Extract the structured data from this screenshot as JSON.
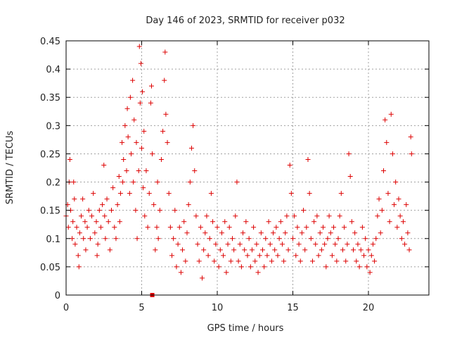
{
  "chart_data": {
    "type": "scatter",
    "title": "Day 146 of 2023, SRMTID for receiver p032",
    "xlabel": "GPS time / hours",
    "ylabel": "SRMTID / TECUs",
    "xlim": [
      0,
      24
    ],
    "ylim": [
      0,
      0.45
    ],
    "xticks": [
      0,
      5,
      10,
      15,
      20
    ],
    "yticks": [
      0,
      0.05,
      0.1,
      0.15,
      0.2,
      0.25,
      0.3,
      0.35,
      0.4,
      0.45
    ],
    "xtick_labels": [
      "0",
      "5",
      "10",
      "15",
      "20"
    ],
    "ytick_labels": [
      "0",
      "0.05",
      "0.1",
      "0.15",
      "0.2",
      "0.25",
      "0.3",
      "0.35",
      "0.4",
      "0.45"
    ],
    "grid": true,
    "marker": "plus",
    "series": [
      {
        "name": "SRMTID",
        "color": "#dd0000",
        "points": [
          [
            0.0,
            0.14
          ],
          [
            0.1,
            0.16
          ],
          [
            0.15,
            0.12
          ],
          [
            0.2,
            0.2
          ],
          [
            0.25,
            0.24
          ],
          [
            0.3,
            0.15
          ],
          [
            0.4,
            0.1
          ],
          [
            0.45,
            0.13
          ],
          [
            0.5,
            0.2
          ],
          [
            0.55,
            0.17
          ],
          [
            0.6,
            0.09
          ],
          [
            0.7,
            0.12
          ],
          [
            0.8,
            0.07
          ],
          [
            0.85,
            0.05
          ],
          [
            0.9,
            0.11
          ],
          [
            1.0,
            0.14
          ],
          [
            1.1,
            0.17
          ],
          [
            1.15,
            0.1
          ],
          [
            1.25,
            0.13
          ],
          [
            1.3,
            0.08
          ],
          [
            1.4,
            0.12
          ],
          [
            1.5,
            0.15
          ],
          [
            1.6,
            0.1
          ],
          [
            1.7,
            0.14
          ],
          [
            1.8,
            0.18
          ],
          [
            1.9,
            0.11
          ],
          [
            2.0,
            0.13
          ],
          [
            2.05,
            0.07
          ],
          [
            2.1,
            0.09
          ],
          [
            2.2,
            0.15
          ],
          [
            2.3,
            0.12
          ],
          [
            2.4,
            0.16
          ],
          [
            2.5,
            0.23
          ],
          [
            2.55,
            0.14
          ],
          [
            2.6,
            0.1
          ],
          [
            2.7,
            0.17
          ],
          [
            2.8,
            0.13
          ],
          [
            2.9,
            0.08
          ],
          [
            3.0,
            0.15
          ],
          [
            3.1,
            0.19
          ],
          [
            3.2,
            0.12
          ],
          [
            3.3,
            0.1
          ],
          [
            3.4,
            0.16
          ],
          [
            3.5,
            0.21
          ],
          [
            3.55,
            0.13
          ],
          [
            3.6,
            0.18
          ],
          [
            3.7,
            0.27
          ],
          [
            3.75,
            0.2
          ],
          [
            3.8,
            0.24
          ],
          [
            3.9,
            0.3
          ],
          [
            4.0,
            0.22
          ],
          [
            4.05,
            0.33
          ],
          [
            4.1,
            0.28
          ],
          [
            4.2,
            0.18
          ],
          [
            4.25,
            0.35
          ],
          [
            4.3,
            0.25
          ],
          [
            4.4,
            0.38
          ],
          [
            4.45,
            0.2
          ],
          [
            4.5,
            0.31
          ],
          [
            4.6,
            0.15
          ],
          [
            4.65,
            0.27
          ],
          [
            4.7,
            0.1
          ],
          [
            4.8,
            0.22
          ],
          [
            4.85,
            0.44
          ],
          [
            4.9,
            0.34
          ],
          [
            4.95,
            0.41
          ],
          [
            5.0,
            0.26
          ],
          [
            5.05,
            0.36
          ],
          [
            5.1,
            0.19
          ],
          [
            5.15,
            0.29
          ],
          [
            5.2,
            0.14
          ],
          [
            5.3,
            0.22
          ],
          [
            5.4,
            0.12
          ],
          [
            5.5,
            0.18
          ],
          [
            5.6,
            0.34
          ],
          [
            5.65,
            0.37
          ],
          [
            5.7,
            0.25
          ],
          [
            5.8,
            0.16
          ],
          [
            5.9,
            0.08
          ],
          [
            6.0,
            0.12
          ],
          [
            6.05,
            0.2
          ],
          [
            6.1,
            0.1
          ],
          [
            6.2,
            0.15
          ],
          [
            6.3,
            0.24
          ],
          [
            6.4,
            0.29
          ],
          [
            6.5,
            0.38
          ],
          [
            6.55,
            0.43
          ],
          [
            6.6,
            0.32
          ],
          [
            6.7,
            0.27
          ],
          [
            6.8,
            0.18
          ],
          [
            6.9,
            0.12
          ],
          [
            7.0,
            0.07
          ],
          [
            7.1,
            0.1
          ],
          [
            7.2,
            0.15
          ],
          [
            7.3,
            0.05
          ],
          [
            7.4,
            0.09
          ],
          [
            7.5,
            0.12
          ],
          [
            7.6,
            0.04
          ],
          [
            7.7,
            0.08
          ],
          [
            7.8,
            0.13
          ],
          [
            7.9,
            0.06
          ],
          [
            8.0,
            0.11
          ],
          [
            8.1,
            0.16
          ],
          [
            8.2,
            0.2
          ],
          [
            8.3,
            0.26
          ],
          [
            8.4,
            0.3
          ],
          [
            8.5,
            0.22
          ],
          [
            8.6,
            0.14
          ],
          [
            8.7,
            0.09
          ],
          [
            8.8,
            0.06
          ],
          [
            8.9,
            0.12
          ],
          [
            9.0,
            0.03
          ],
          [
            9.1,
            0.08
          ],
          [
            9.2,
            0.11
          ],
          [
            9.3,
            0.14
          ],
          [
            9.4,
            0.07
          ],
          [
            9.5,
            0.1
          ],
          [
            9.6,
            0.18
          ],
          [
            9.7,
            0.13
          ],
          [
            9.8,
            0.06
          ],
          [
            9.9,
            0.09
          ],
          [
            10.0,
            0.12
          ],
          [
            10.1,
            0.05
          ],
          [
            10.2,
            0.08
          ],
          [
            10.3,
            0.11
          ],
          [
            10.4,
            0.07
          ],
          [
            10.5,
            0.13
          ],
          [
            10.6,
            0.04
          ],
          [
            10.7,
            0.09
          ],
          [
            10.8,
            0.12
          ],
          [
            10.9,
            0.06
          ],
          [
            11.0,
            0.1
          ],
          [
            11.1,
            0.08
          ],
          [
            11.2,
            0.14
          ],
          [
            11.3,
            0.2
          ],
          [
            11.4,
            0.06
          ],
          [
            11.5,
            0.09
          ],
          [
            11.6,
            0.05
          ],
          [
            11.7,
            0.11
          ],
          [
            11.8,
            0.08
          ],
          [
            11.9,
            0.13
          ],
          [
            12.0,
            0.07
          ],
          [
            12.1,
            0.1
          ],
          [
            12.2,
            0.05
          ],
          [
            12.3,
            0.08
          ],
          [
            12.4,
            0.12
          ],
          [
            12.5,
            0.06
          ],
          [
            12.6,
            0.09
          ],
          [
            12.7,
            0.04
          ],
          [
            12.8,
            0.07
          ],
          [
            12.9,
            0.11
          ],
          [
            13.0,
            0.08
          ],
          [
            13.1,
            0.05
          ],
          [
            13.2,
            0.1
          ],
          [
            13.3,
            0.07
          ],
          [
            13.4,
            0.13
          ],
          [
            13.5,
            0.09
          ],
          [
            13.6,
            0.06
          ],
          [
            13.7,
            0.11
          ],
          [
            13.8,
            0.08
          ],
          [
            13.9,
            0.12
          ],
          [
            14.0,
            0.07
          ],
          [
            14.1,
            0.1
          ],
          [
            14.2,
            0.13
          ],
          [
            14.3,
            0.09
          ],
          [
            14.4,
            0.06
          ],
          [
            14.5,
            0.11
          ],
          [
            14.6,
            0.14
          ],
          [
            14.7,
            0.08
          ],
          [
            14.8,
            0.23
          ],
          [
            14.9,
            0.18
          ],
          [
            15.0,
            0.1
          ],
          [
            15.1,
            0.14
          ],
          [
            15.2,
            0.07
          ],
          [
            15.3,
            0.12
          ],
          [
            15.4,
            0.09
          ],
          [
            15.5,
            0.06
          ],
          [
            15.6,
            0.11
          ],
          [
            15.7,
            0.15
          ],
          [
            15.8,
            0.08
          ],
          [
            15.9,
            0.12
          ],
          [
            16.0,
            0.24
          ],
          [
            16.1,
            0.18
          ],
          [
            16.2,
            0.1
          ],
          [
            16.3,
            0.06
          ],
          [
            16.4,
            0.13
          ],
          [
            16.5,
            0.09
          ],
          [
            16.6,
            0.14
          ],
          [
            16.7,
            0.07
          ],
          [
            16.8,
            0.11
          ],
          [
            16.9,
            0.08
          ],
          [
            17.0,
            0.12
          ],
          [
            17.1,
            0.09
          ],
          [
            17.2,
            0.05
          ],
          [
            17.3,
            0.1
          ],
          [
            17.4,
            0.14
          ],
          [
            17.5,
            0.11
          ],
          [
            17.6,
            0.07
          ],
          [
            17.7,
            0.12
          ],
          [
            17.8,
            0.09
          ],
          [
            17.9,
            0.06
          ],
          [
            18.0,
            0.1
          ],
          [
            18.1,
            0.14
          ],
          [
            18.2,
            0.18
          ],
          [
            18.3,
            0.08
          ],
          [
            18.4,
            0.12
          ],
          [
            18.5,
            0.06
          ],
          [
            18.6,
            0.09
          ],
          [
            18.7,
            0.25
          ],
          [
            18.8,
            0.21
          ],
          [
            18.9,
            0.13
          ],
          [
            19.0,
            0.08
          ],
          [
            19.1,
            0.11
          ],
          [
            19.2,
            0.06
          ],
          [
            19.3,
            0.09
          ],
          [
            19.4,
            0.05
          ],
          [
            19.5,
            0.08
          ],
          [
            19.6,
            0.12
          ],
          [
            19.7,
            0.07
          ],
          [
            19.8,
            0.1
          ],
          [
            19.9,
            0.05
          ],
          [
            20.0,
            0.08
          ],
          [
            20.1,
            0.04
          ],
          [
            20.2,
            0.07
          ],
          [
            20.3,
            0.09
          ],
          [
            20.4,
            0.06
          ],
          [
            20.5,
            0.1
          ],
          [
            20.6,
            0.14
          ],
          [
            20.7,
            0.17
          ],
          [
            20.8,
            0.11
          ],
          [
            20.9,
            0.15
          ],
          [
            21.0,
            0.22
          ],
          [
            21.1,
            0.31
          ],
          [
            21.2,
            0.27
          ],
          [
            21.3,
            0.18
          ],
          [
            21.4,
            0.13
          ],
          [
            21.5,
            0.32
          ],
          [
            21.6,
            0.25
          ],
          [
            21.7,
            0.16
          ],
          [
            21.8,
            0.2
          ],
          [
            21.9,
            0.12
          ],
          [
            22.0,
            0.17
          ],
          [
            22.1,
            0.14
          ],
          [
            22.2,
            0.1
          ],
          [
            22.3,
            0.13
          ],
          [
            22.4,
            0.09
          ],
          [
            22.5,
            0.16
          ],
          [
            22.6,
            0.11
          ],
          [
            22.7,
            0.08
          ],
          [
            22.8,
            0.28
          ],
          [
            22.85,
            0.25
          ]
        ]
      }
    ],
    "marker_square": {
      "x": 5.7,
      "y": 0.0,
      "color": "#dd0000"
    }
  }
}
